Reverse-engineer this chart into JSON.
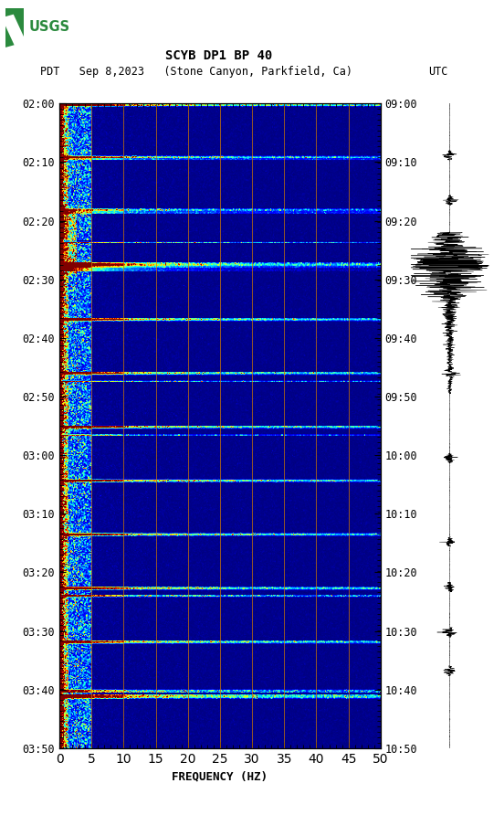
{
  "title_line1": "SCYB DP1 BP 40",
  "title_line2_left": "PDT   Sep 8,2023   (Stone Canyon, Parkfield, Ca)",
  "title_line2_right": "UTC",
  "xlabel": "FREQUENCY (HZ)",
  "ylabel_left_times": [
    "02:00",
    "02:10",
    "02:20",
    "02:30",
    "02:40",
    "02:50",
    "03:00",
    "03:10",
    "03:20",
    "03:30",
    "03:40",
    "03:50"
  ],
  "ylabel_right_times": [
    "09:00",
    "09:10",
    "09:20",
    "09:30",
    "09:40",
    "09:50",
    "10:00",
    "10:10",
    "10:20",
    "10:30",
    "10:40",
    "10:50"
  ],
  "freq_min": 0,
  "freq_max": 50,
  "freq_ticks": [
    0,
    5,
    10,
    15,
    20,
    25,
    30,
    35,
    40,
    45,
    50
  ],
  "vertical_lines_freq": [
    5,
    10,
    15,
    20,
    25,
    30,
    35,
    40,
    45
  ],
  "n_time_steps": 660,
  "n_freq_steps": 370,
  "background_color": "#ffffff",
  "usgs_logo_color": "#2b8a3e",
  "orange_line_color": "#cc7700",
  "waveform_color": "#000000"
}
